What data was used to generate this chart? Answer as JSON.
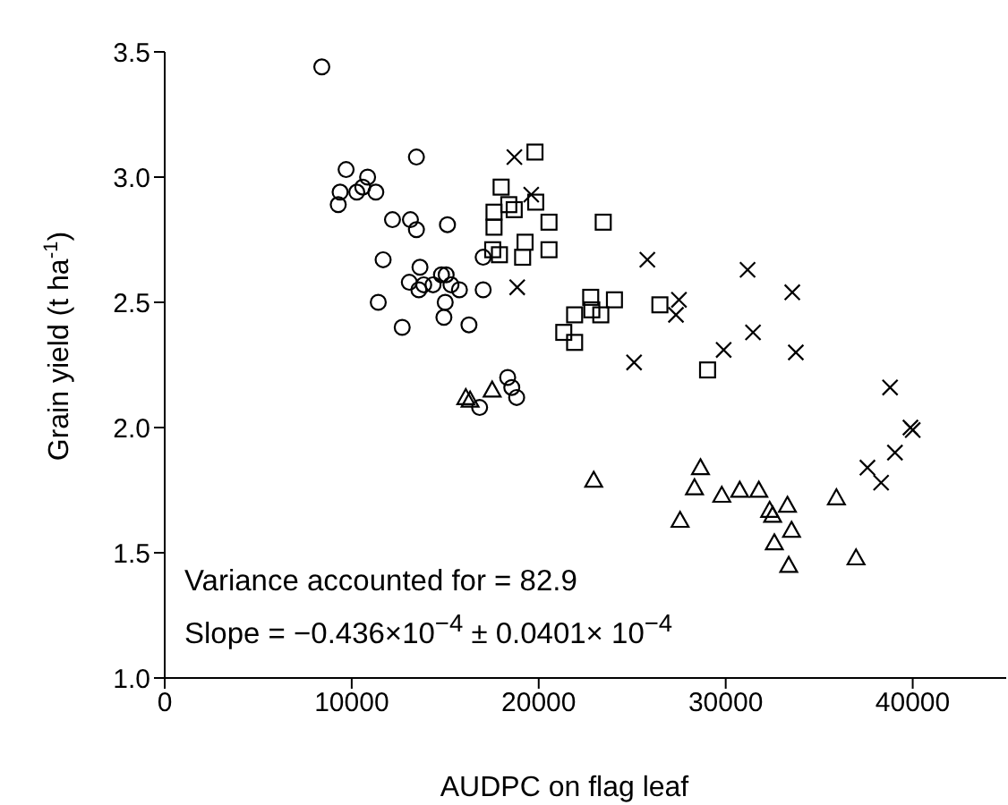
{
  "chart_data": {
    "type": "scatter",
    "xlabel": "AUDPC on flag leaf",
    "ylabel": "Grain yield (t ha$^{-1}$)",
    "xlim": [
      0,
      45000
    ],
    "xticks": [
      0,
      10000,
      20000,
      30000,
      40000
    ],
    "ylim": [
      1,
      3.5
    ],
    "yticks": [
      {
        "value": 1,
        "label": "1.0"
      },
      1.5,
      {
        "value": 2,
        "label": "2.0"
      },
      2.5,
      {
        "value": 3,
        "label": "3.0"
      },
      3.5
    ],
    "annotations": [
      "Variance accounted for = 82.9",
      "Slope = −0.436×10$^{−4}$ ± 0.0401× 10$^{−4}$"
    ],
    "series": [
      {
        "marker": "circle",
        "color": "#000000",
        "x": [
          8400,
          13460,
          9700,
          10850,
          9380,
          10270,
          10590,
          11290,
          9280,
          12180,
          13140,
          13460,
          15120,
          11680,
          13650,
          13080,
          13590,
          13850,
          14350,
          14800,
          15050,
          15310,
          15760,
          15000,
          11420,
          14930,
          12700,
          16270,
          17030,
          17030,
          18340,
          18560,
          18820,
          16840
        ],
        "values": [
          3.44,
          3.08,
          3.03,
          3.0,
          2.94,
          2.94,
          2.96,
          2.94,
          2.89,
          2.83,
          2.83,
          2.79,
          2.81,
          2.67,
          2.64,
          2.58,
          2.55,
          2.57,
          2.57,
          2.61,
          2.61,
          2.57,
          2.55,
          2.5,
          2.5,
          2.44,
          2.4,
          2.41,
          2.68,
          2.55,
          2.2,
          2.16,
          2.12,
          2.08
        ]
      },
      {
        "marker": "square",
        "color": "#000000",
        "x": [
          19800,
          17990,
          19840,
          18400,
          18690,
          17610,
          17610,
          20550,
          23450,
          19270,
          20550,
          17540,
          17900,
          19140,
          22780,
          24050,
          21920,
          22840,
          23320,
          21340,
          21920,
          26480,
          29030
        ],
        "values": [
          3.1,
          2.96,
          2.9,
          2.89,
          2.87,
          2.86,
          2.8,
          2.82,
          2.82,
          2.74,
          2.71,
          2.71,
          2.69,
          2.68,
          2.52,
          2.51,
          2.45,
          2.47,
          2.45,
          2.38,
          2.34,
          2.49,
          2.23
        ]
      },
      {
        "marker": "cross",
        "color": "#000000",
        "x": [
          18700,
          19600,
          25810,
          18850,
          25100,
          31170,
          33560,
          27500,
          27340,
          29890,
          31460,
          33750,
          38790,
          39880,
          40000,
          39050,
          37580,
          38310
        ],
        "values": [
          3.08,
          2.93,
          2.67,
          2.56,
          2.26,
          2.63,
          2.54,
          2.51,
          2.45,
          2.31,
          2.38,
          2.3,
          2.16,
          2.0,
          1.99,
          1.9,
          1.84,
          1.78
        ]
      },
      {
        "marker": "triangle",
        "color": "#000000",
        "x": [
          16100,
          16330,
          17510,
          22940,
          28650,
          28330,
          27560,
          29790,
          30750,
          31770,
          32350,
          32510,
          33300,
          33520,
          32600,
          33370,
          35920,
          36970
        ],
        "values": [
          2.12,
          2.11,
          2.15,
          1.79,
          1.84,
          1.76,
          1.63,
          1.73,
          1.75,
          1.75,
          1.67,
          1.65,
          1.69,
          1.59,
          1.54,
          1.45,
          1.72,
          1.48
        ]
      }
    ]
  }
}
